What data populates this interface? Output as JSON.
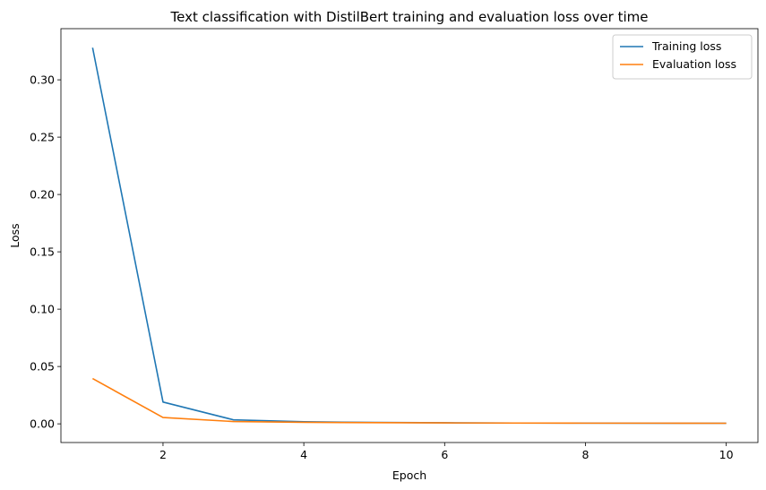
{
  "chart_data": {
    "type": "line",
    "title": "Text classification with DistilBert training and evaluation loss over time",
    "xlabel": "Epoch",
    "ylabel": "Loss",
    "x": [
      1,
      2,
      3,
      4,
      5,
      6,
      7,
      8,
      9,
      10
    ],
    "xlim": [
      0.55,
      10.45
    ],
    "ylim": [
      -0.0163,
      0.3446
    ],
    "xticks": [
      2,
      4,
      6,
      8,
      10
    ],
    "yticks": [
      0.0,
      0.05,
      0.1,
      0.15,
      0.2,
      0.25,
      0.3
    ],
    "grid": false,
    "legend_position": "top-right",
    "series": [
      {
        "name": "Training loss",
        "color": "#1f77b4",
        "values": [
          0.328,
          0.019,
          0.0035,
          0.0018,
          0.0012,
          0.0009,
          0.0007,
          0.0006,
          0.0005,
          0.0005
        ]
      },
      {
        "name": "Evaluation loss",
        "color": "#ff7f0e",
        "values": [
          0.0395,
          0.0055,
          0.002,
          0.0013,
          0.001,
          0.0008,
          0.0007,
          0.0006,
          0.0006,
          0.0005
        ]
      }
    ]
  }
}
